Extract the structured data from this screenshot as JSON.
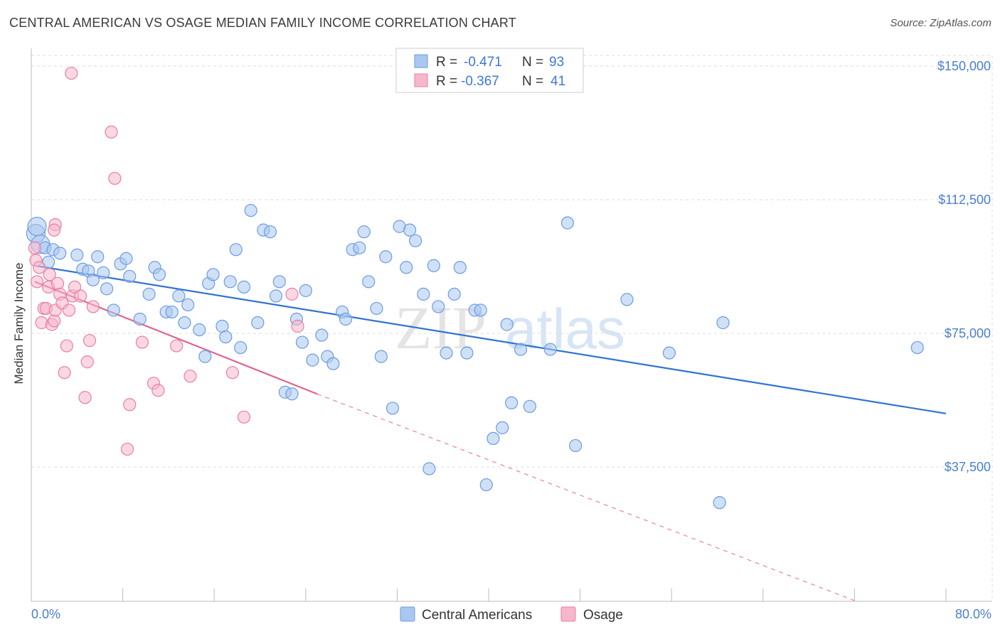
{
  "header": {
    "title": "CENTRAL AMERICAN VS OSAGE MEDIAN FAMILY INCOME CORRELATION CHART",
    "source": "Source: ZipAtlas.com"
  },
  "watermark": {
    "zip": "ZIP",
    "atlas": "atlas"
  },
  "legend": {
    "r_label": "R =",
    "n_label": "N =",
    "rows": [
      {
        "r": "-0.471",
        "n": "93",
        "color": "#a9c7f0"
      },
      {
        "r": "-0.367",
        "n": "41",
        "color": "#f7b6cb"
      }
    ]
  },
  "chart_data": {
    "type": "scatter",
    "title": "CENTRAL AMERICAN VS OSAGE MEDIAN FAMILY INCOME CORRELATION CHART",
    "xlabel": "",
    "ylabel": "Median Family Income",
    "xlim": [
      0,
      80
    ],
    "ylim": [
      0,
      153000
    ],
    "x_tick_labels": [
      "0.0%",
      "80.0%"
    ],
    "y_ticks": [
      37500,
      75000,
      112500,
      150000
    ],
    "y_tick_labels": [
      "$37,500",
      "$75,000",
      "$112,500",
      "$150,000"
    ],
    "grid": true,
    "legend_position": "top-center",
    "series": [
      {
        "name": "Central Americans",
        "color": "#6a9de0",
        "fill": "#a9c7f0",
        "r": -0.471,
        "n": 93,
        "trend": {
          "x0": 0.3,
          "y0": 94000,
          "x1": 80,
          "y1": 52500
        },
        "points": [
          [
            0.4,
            103000
          ],
          [
            0.5,
            105000
          ],
          [
            0.8,
            100000
          ],
          [
            1.2,
            99000
          ],
          [
            1.5,
            95000
          ],
          [
            1.9,
            98500
          ],
          [
            2.5,
            97500
          ],
          [
            4.0,
            97000
          ],
          [
            4.5,
            93000
          ],
          [
            5.0,
            92500
          ],
          [
            5.4,
            90000
          ],
          [
            5.8,
            96500
          ],
          [
            6.3,
            92000
          ],
          [
            6.6,
            87500
          ],
          [
            7.2,
            81500
          ],
          [
            7.8,
            94500
          ],
          [
            8.3,
            96000
          ],
          [
            8.6,
            91000
          ],
          [
            9.5,
            79000
          ],
          [
            10.3,
            86000
          ],
          [
            10.8,
            93500
          ],
          [
            11.2,
            91500
          ],
          [
            11.8,
            81000
          ],
          [
            12.3,
            81000
          ],
          [
            12.9,
            85500
          ],
          [
            13.4,
            78000
          ],
          [
            13.7,
            83000
          ],
          [
            14.7,
            76000
          ],
          [
            15.2,
            68500
          ],
          [
            15.5,
            89000
          ],
          [
            15.9,
            91500
          ],
          [
            16.7,
            77000
          ],
          [
            17.0,
            74000
          ],
          [
            17.4,
            89500
          ],
          [
            17.9,
            98500
          ],
          [
            18.3,
            71000
          ],
          [
            18.6,
            88000
          ],
          [
            19.2,
            109500
          ],
          [
            19.8,
            78000
          ],
          [
            20.3,
            104000
          ],
          [
            20.9,
            103500
          ],
          [
            21.4,
            85500
          ],
          [
            21.7,
            89500
          ],
          [
            22.2,
            58500
          ],
          [
            22.8,
            58000
          ],
          [
            23.2,
            79000
          ],
          [
            23.7,
            72500
          ],
          [
            24.0,
            87000
          ],
          [
            24.6,
            67500
          ],
          [
            25.4,
            74500
          ],
          [
            25.9,
            68500
          ],
          [
            26.4,
            66500
          ],
          [
            27.2,
            81000
          ],
          [
            27.5,
            79000
          ],
          [
            28.1,
            98500
          ],
          [
            28.7,
            99000
          ],
          [
            29.1,
            103500
          ],
          [
            29.5,
            89500
          ],
          [
            30.2,
            82000
          ],
          [
            30.6,
            68500
          ],
          [
            31.0,
            96500
          ],
          [
            31.6,
            54000
          ],
          [
            32.2,
            105000
          ],
          [
            32.8,
            93500
          ],
          [
            33.1,
            104000
          ],
          [
            33.6,
            101000
          ],
          [
            34.3,
            86000
          ],
          [
            34.8,
            37000
          ],
          [
            35.2,
            94000
          ],
          [
            35.6,
            82500
          ],
          [
            36.3,
            69500
          ],
          [
            37.0,
            86000
          ],
          [
            37.5,
            93500
          ],
          [
            38.1,
            69500
          ],
          [
            38.8,
            81500
          ],
          [
            39.3,
            81500
          ],
          [
            39.8,
            32500
          ],
          [
            40.4,
            45500
          ],
          [
            41.2,
            48500
          ],
          [
            41.6,
            77500
          ],
          [
            42.0,
            55500
          ],
          [
            42.8,
            70500
          ],
          [
            43.6,
            54500
          ],
          [
            45.4,
            70500
          ],
          [
            46.9,
            106000
          ],
          [
            47.6,
            43500
          ],
          [
            52.1,
            84500
          ],
          [
            55.8,
            69500
          ],
          [
            60.5,
            78000
          ],
          [
            60.2,
            27500
          ],
          [
            77.5,
            71000
          ]
        ]
      },
      {
        "name": "Osage",
        "color": "#e87fa3",
        "fill": "#f7b6cb",
        "r": -0.367,
        "n": 41,
        "trend": {
          "x0": 0.3,
          "y0": 89500,
          "x1": 25,
          "y1": 58000,
          "dash_x1": 72,
          "dash_y1": 0
        },
        "points": [
          [
            0.3,
            99000
          ],
          [
            0.4,
            95500
          ],
          [
            0.5,
            89500
          ],
          [
            0.7,
            93500
          ],
          [
            0.9,
            78000
          ],
          [
            1.1,
            82000
          ],
          [
            1.3,
            82000
          ],
          [
            1.5,
            88000
          ],
          [
            1.6,
            91500
          ],
          [
            1.8,
            77500
          ],
          [
            2.0,
            78500
          ],
          [
            2.1,
            81500
          ],
          [
            2.3,
            89000
          ],
          [
            2.5,
            86000
          ],
          [
            2.7,
            83500
          ],
          [
            2.9,
            64000
          ],
          [
            3.1,
            71500
          ],
          [
            3.3,
            81500
          ],
          [
            3.6,
            85500
          ],
          [
            3.8,
            88000
          ],
          [
            4.3,
            85500
          ],
          [
            4.7,
            57000
          ],
          [
            4.9,
            67000
          ],
          [
            5.1,
            73000
          ],
          [
            5.4,
            82500
          ],
          [
            7.0,
            131500
          ],
          [
            7.3,
            118500
          ],
          [
            8.4,
            42500
          ],
          [
            8.6,
            55000
          ],
          [
            9.7,
            72500
          ],
          [
            10.7,
            61000
          ],
          [
            11.1,
            59000
          ],
          [
            12.7,
            71500
          ],
          [
            13.9,
            63000
          ],
          [
            17.6,
            64000
          ],
          [
            18.6,
            51500
          ],
          [
            22.8,
            86000
          ],
          [
            23.3,
            77000
          ],
          [
            3.5,
            148000
          ],
          [
            2.1,
            105500
          ],
          [
            2.0,
            104000
          ]
        ]
      }
    ]
  },
  "bottom_legend": [
    {
      "label": "Central Americans",
      "color": "#a9c7f0"
    },
    {
      "label": "Osage",
      "color": "#f7b6cb"
    }
  ]
}
